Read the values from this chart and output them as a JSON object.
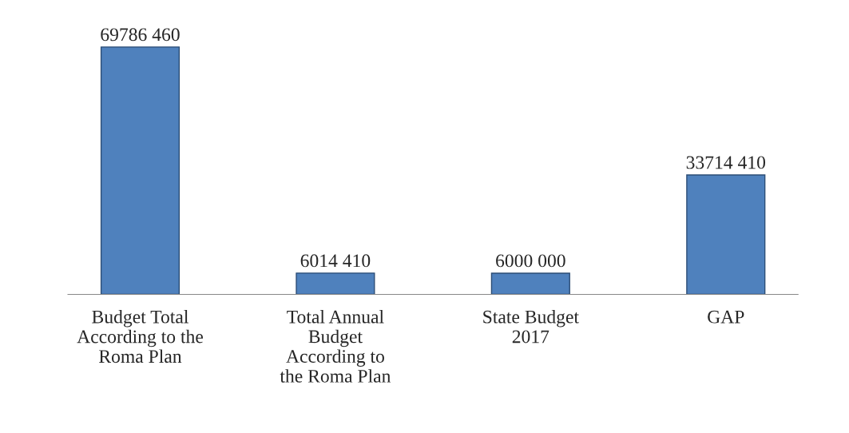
{
  "chart_data": {
    "type": "bar",
    "categories": [
      "Budget Total\nAccording to the\nRoma Plan",
      "Total Annual\nBudget\nAccording to\nthe Roma Plan",
      "State Budget\n2017",
      "GAP"
    ],
    "values": [
      69786460,
      6014410,
      6000000,
      33714410
    ],
    "value_labels": [
      "69786 460",
      "6014 410",
      "6000 000",
      "33714 410"
    ],
    "color": "#4f81bd",
    "tick_labels": "x",
    "grid": false,
    "legend": false
  }
}
